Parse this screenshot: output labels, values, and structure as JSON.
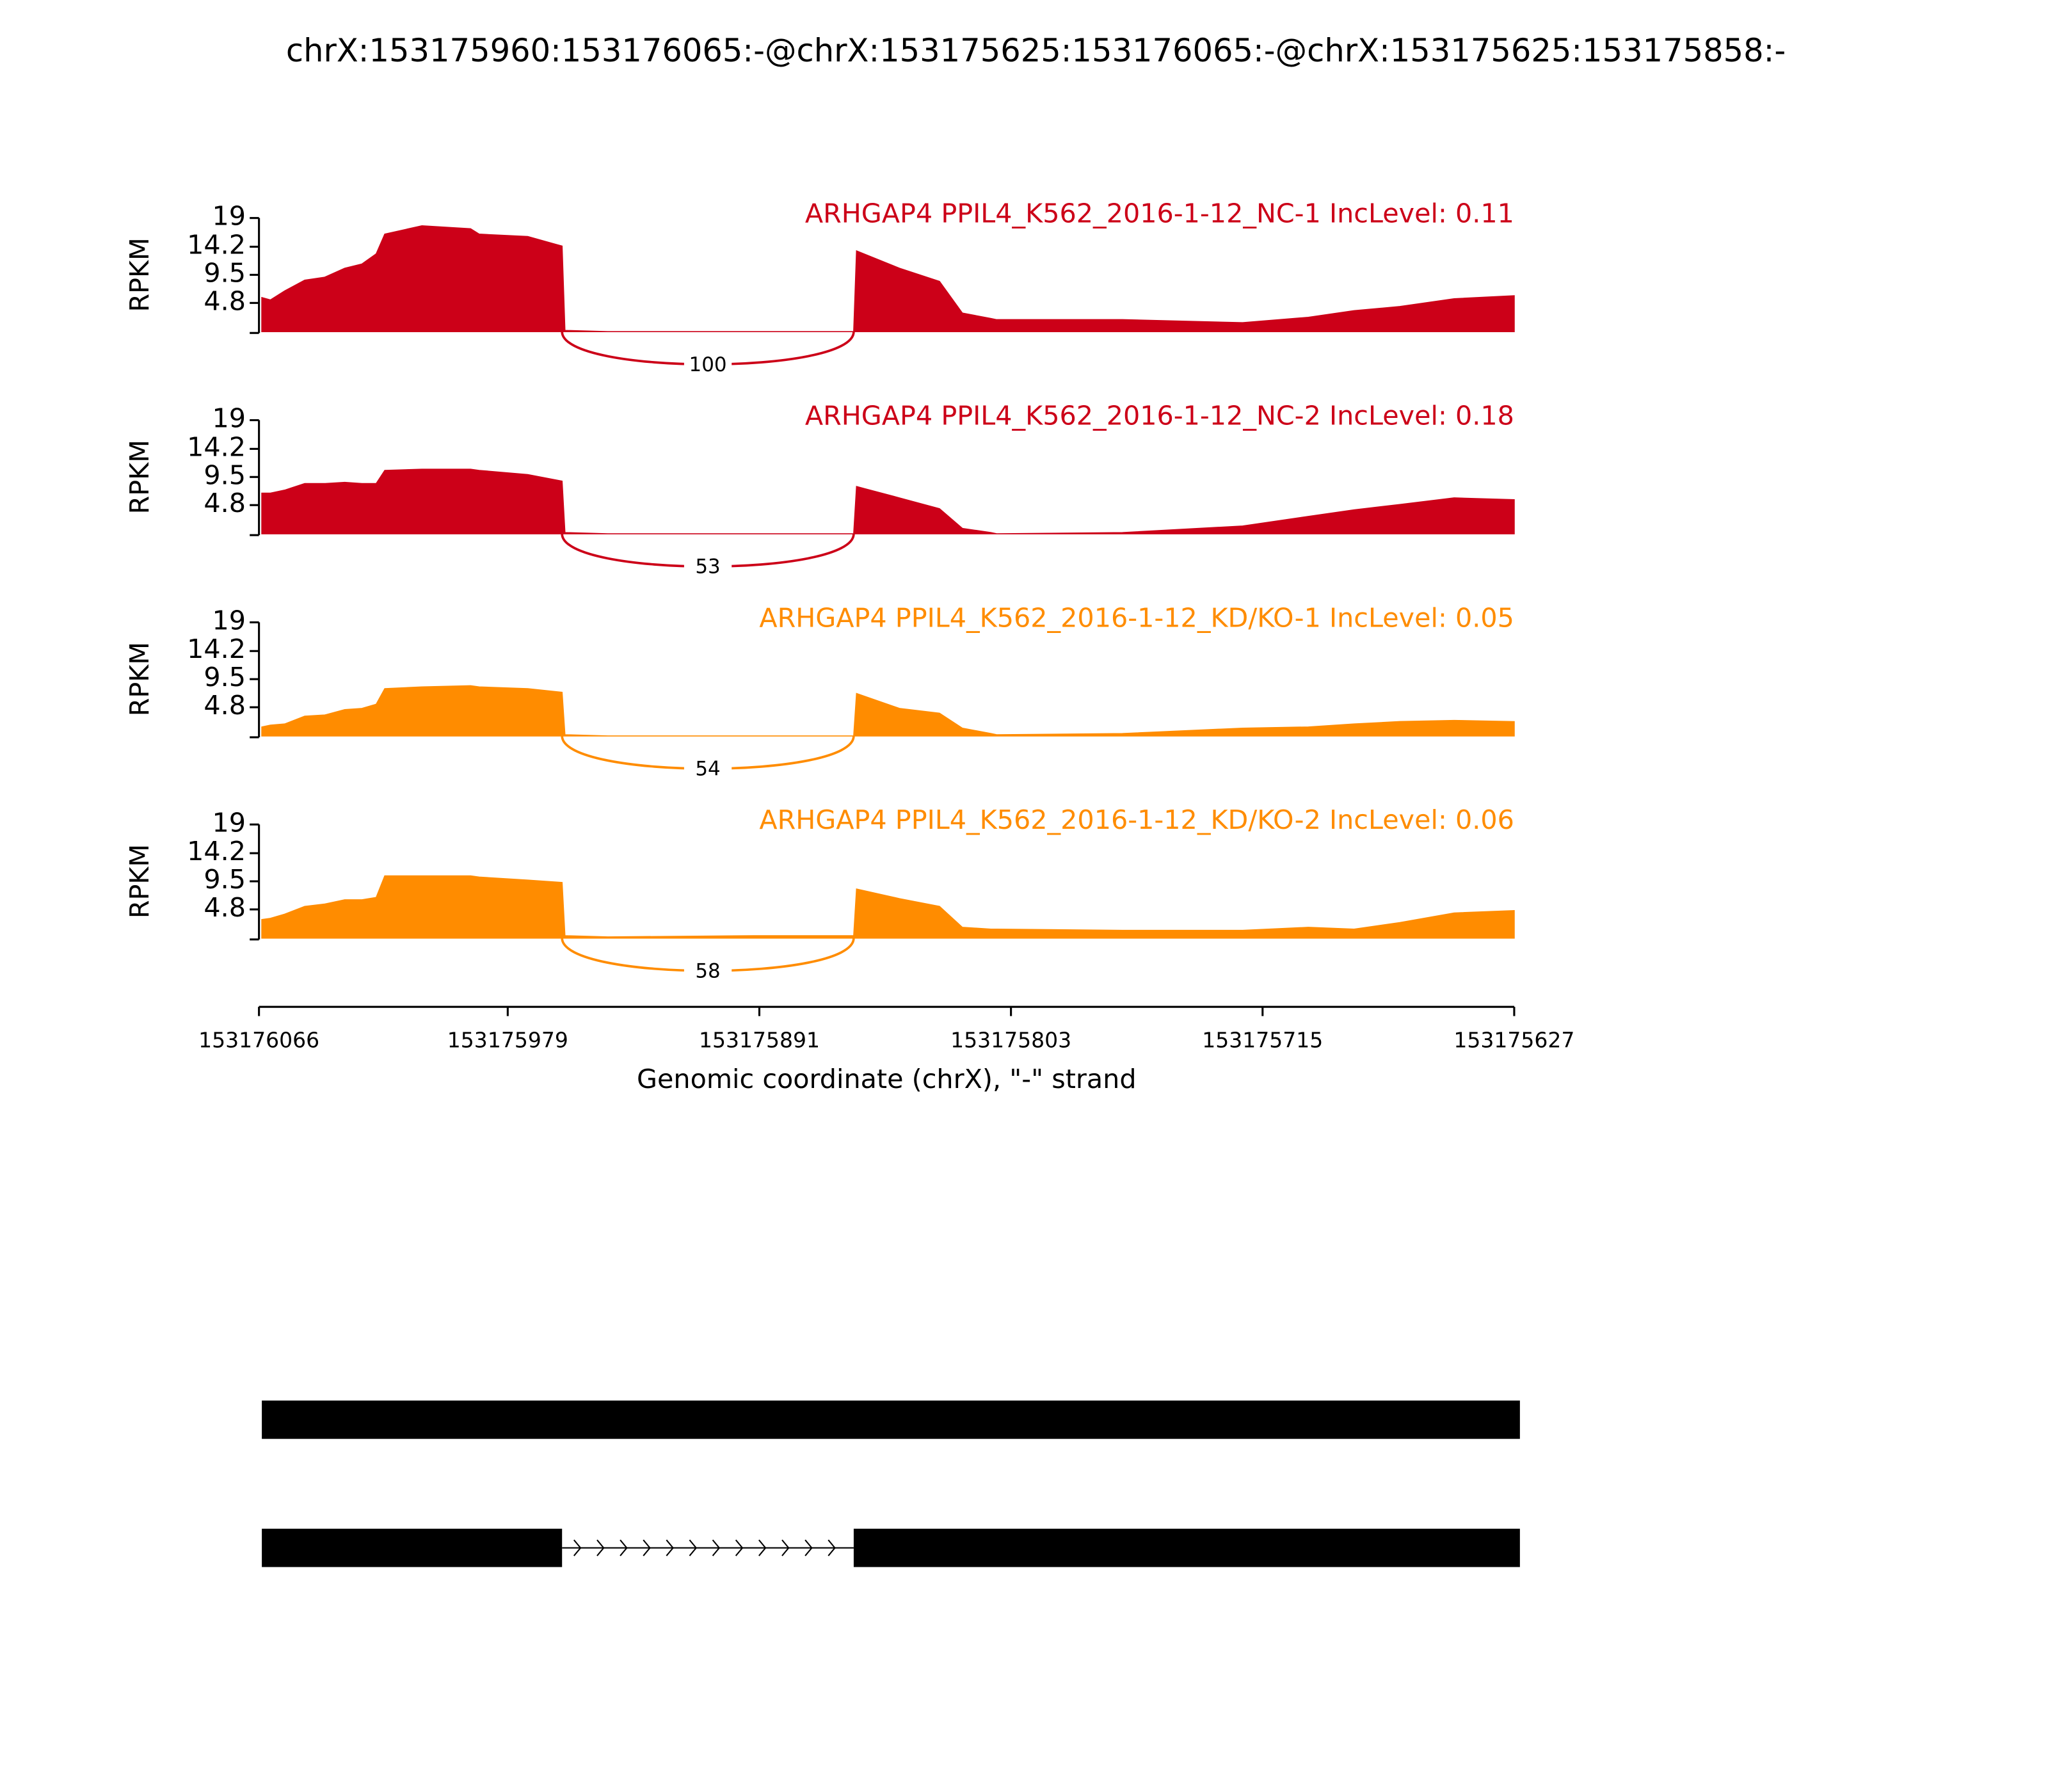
{
  "title": "chrX:153175960:153176065:-@chrX:153175625:153176065:-@chrX:153175625:153175858:-",
  "x_axis": {
    "label": "Genomic coordinate (chrX), \"-\" strand",
    "xlim": [
      153176066,
      153175627
    ],
    "xticks": [
      153176066,
      153175979,
      153175891,
      153175803,
      153175715,
      153175627
    ]
  },
  "chart_data": [
    {
      "type": "area",
      "title": "ARHGAP4 PPIL4_K562_2016-1-12_NC-1 IncLevel: 0.11",
      "color": "#cc0018",
      "ylabel": "RPKM",
      "ylim": [
        0,
        19
      ],
      "yticks": [
        4.8,
        9.5,
        14.2,
        19
      ],
      "x": [
        153176065,
        153176062,
        153176057,
        153176050,
        153176043,
        153176036,
        153176030,
        153176025,
        153176022,
        153176009,
        153175992,
        153175989,
        153175972,
        153175960,
        153175959,
        153175944,
        153175893,
        153175858,
        153175857,
        153175842,
        153175828,
        153175820,
        153175810,
        153175808,
        153175764,
        153175722,
        153175699,
        153175683,
        153175667,
        153175648,
        153175627
      ],
      "values": [
        5.7,
        5.3,
        6.8,
        8.6,
        9.1,
        10.6,
        11.3,
        13.0,
        16.3,
        17.7,
        17.2,
        16.3,
        15.9,
        14.3,
        0.2,
        0,
        0,
        0,
        13.5,
        10.6,
        8.4,
        3.1,
        2.2,
        2.0,
        2.0,
        1.5,
        2.4,
        3.5,
        4.2,
        5.5,
        6.0
      ],
      "junctions": [
        {
          "start": 153175960,
          "end": 153175858,
          "value": 100
        }
      ]
    },
    {
      "type": "area",
      "title": "ARHGAP4 PPIL4_K562_2016-1-12_NC-2 IncLevel: 0.18",
      "color": "#cc0018",
      "ylabel": "RPKM",
      "ylim": [
        0,
        19
      ],
      "yticks": [
        4.8,
        9.5,
        14.2,
        19
      ],
      "x": [
        153176065,
        153176062,
        153176057,
        153176050,
        153176043,
        153176036,
        153176030,
        153176025,
        153176022,
        153176009,
        153175992,
        153175989,
        153175972,
        153175960,
        153175959,
        153175944,
        153175893,
        153175858,
        153175857,
        153175842,
        153175828,
        153175820,
        153175810,
        153175808,
        153175764,
        153175722,
        153175699,
        153175683,
        153175667,
        153175648,
        153175627
      ],
      "values": [
        6.8,
        6.8,
        7.3,
        8.4,
        8.4,
        8.6,
        8.4,
        8.4,
        10.6,
        10.8,
        10.8,
        10.6,
        9.9,
        8.8,
        0.2,
        0,
        0,
        0,
        7.9,
        6.0,
        4.2,
        0.9,
        0.2,
        0,
        0.2,
        1.3,
        2.9,
        4.0,
        4.9,
        6.0,
        5.7
      ],
      "junctions": [
        {
          "start": 153175960,
          "end": 153175858,
          "value": 53
        }
      ]
    },
    {
      "type": "area",
      "title": "ARHGAP4 PPIL4_K562_2016-1-12_KD/KO-1 IncLevel: 0.05",
      "color": "#ff8c00",
      "ylabel": "RPKM",
      "ylim": [
        0,
        19
      ],
      "yticks": [
        4.8,
        9.5,
        14.2,
        19
      ],
      "x": [
        153176065,
        153176062,
        153176057,
        153176050,
        153176043,
        153176036,
        153176030,
        153176025,
        153176022,
        153176009,
        153175992,
        153175989,
        153175972,
        153175960,
        153175959,
        153175944,
        153175893,
        153175858,
        153175857,
        153175842,
        153175828,
        153175820,
        153175810,
        153175808,
        153175764,
        153175722,
        153175699,
        153175683,
        153175667,
        153175648,
        153175627
      ],
      "values": [
        1.5,
        1.8,
        2.0,
        3.3,
        3.5,
        4.4,
        4.6,
        5.3,
        7.9,
        8.2,
        8.4,
        8.2,
        7.9,
        7.3,
        0.2,
        0,
        0,
        0,
        7.1,
        4.6,
        3.8,
        1.3,
        0.4,
        0.2,
        0.4,
        1.3,
        1.5,
        2.0,
        2.4,
        2.6,
        2.4
      ],
      "junctions": [
        {
          "start": 153175960,
          "end": 153175858,
          "value": 54
        }
      ]
    },
    {
      "type": "area",
      "title": "ARHGAP4 PPIL4_K562_2016-1-12_KD/KO-2 IncLevel: 0.06",
      "color": "#ff8c00",
      "ylabel": "RPKM",
      "ylim": [
        0,
        19
      ],
      "yticks": [
        4.8,
        9.5,
        14.2,
        19
      ],
      "x": [
        153176065,
        153176062,
        153176057,
        153176050,
        153176043,
        153176036,
        153176030,
        153176025,
        153176022,
        153176009,
        153175992,
        153175989,
        153175972,
        153175960,
        153175959,
        153175944,
        153175893,
        153175858,
        153175857,
        153175842,
        153175828,
        153175820,
        153175810,
        153175808,
        153175764,
        153175722,
        153175699,
        153175683,
        153175667,
        153175648,
        153175627
      ],
      "values": [
        3.1,
        3.3,
        4.0,
        5.3,
        5.7,
        6.4,
        6.4,
        6.8,
        10.4,
        10.4,
        10.4,
        10.2,
        9.7,
        9.3,
        0.4,
        0.2,
        0.4,
        0.4,
        8.2,
        6.6,
        5.3,
        1.8,
        1.5,
        1.5,
        1.3,
        1.3,
        1.8,
        1.5,
        2.6,
        4.2,
        4.6
      ],
      "junctions": [
        {
          "start": 153175960,
          "end": 153175858,
          "value": 58
        }
      ]
    }
  ],
  "gene_model": {
    "color": "#000000",
    "transcripts": [
      {
        "exons": [
          [
            153176065,
            153175625
          ]
        ]
      },
      {
        "exons": [
          [
            153176065,
            153175960
          ],
          [
            153175858,
            153175625
          ]
        ]
      }
    ]
  }
}
